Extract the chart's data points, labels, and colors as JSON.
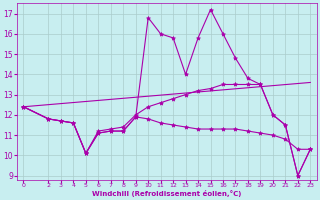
{
  "bg_color": "#c8eef0",
  "line_color": "#aa00aa",
  "grid_color": "#aacccc",
  "xlabel": "Windchill (Refroidissement éolien,°C)",
  "xlabel_color": "#aa00aa",
  "tick_color": "#aa00aa",
  "ylim": [
    8.8,
    17.5
  ],
  "xlim": [
    -0.5,
    23.5
  ],
  "yticks": [
    9,
    10,
    11,
    12,
    13,
    14,
    15,
    16,
    17
  ],
  "xticks": [
    0,
    2,
    3,
    4,
    5,
    6,
    7,
    8,
    9,
    10,
    11,
    12,
    13,
    14,
    15,
    16,
    17,
    18,
    19,
    20,
    21,
    22,
    23
  ],
  "series": [
    {
      "x": [
        0,
        2,
        3,
        4,
        5,
        6,
        7,
        8,
        9,
        10,
        11,
        12,
        13,
        14,
        15,
        16,
        17,
        18,
        19,
        20,
        21,
        22,
        23
      ],
      "y": [
        12.4,
        11.8,
        11.7,
        11.6,
        10.1,
        11.1,
        11.2,
        11.2,
        11.9,
        16.8,
        16.0,
        15.8,
        14.0,
        15.8,
        17.2,
        16.0,
        14.8,
        13.8,
        13.5,
        12.0,
        11.5,
        9.0,
        10.3
      ]
    },
    {
      "x": [
        0,
        23
      ],
      "y": [
        12.4,
        13.6
      ]
    },
    {
      "x": [
        0,
        2,
        3,
        4,
        5,
        6,
        7,
        8,
        9,
        10,
        11,
        12,
        13,
        14,
        15,
        16,
        17,
        18,
        19,
        20,
        21,
        22,
        23
      ],
      "y": [
        12.4,
        11.8,
        11.7,
        11.6,
        10.1,
        11.2,
        11.3,
        11.4,
        12.0,
        12.4,
        12.6,
        12.8,
        13.0,
        13.2,
        13.3,
        13.5,
        13.5,
        13.5,
        13.5,
        12.0,
        11.5,
        9.0,
        10.3
      ]
    },
    {
      "x": [
        0,
        2,
        3,
        4,
        5,
        6,
        7,
        8,
        9,
        10,
        11,
        12,
        13,
        14,
        15,
        16,
        17,
        18,
        19,
        20,
        21,
        22,
        23
      ],
      "y": [
        12.4,
        11.8,
        11.7,
        11.6,
        10.1,
        11.1,
        11.2,
        11.2,
        11.9,
        11.8,
        11.6,
        11.5,
        11.4,
        11.3,
        11.3,
        11.3,
        11.3,
        11.2,
        11.1,
        11.0,
        10.8,
        10.3,
        10.3
      ]
    }
  ],
  "marker": "*",
  "markersize": 3,
  "linewidth": 0.8
}
